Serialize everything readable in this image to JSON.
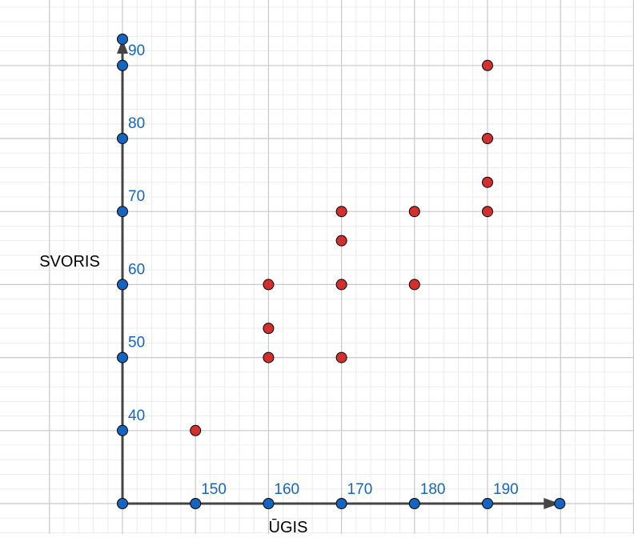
{
  "chart_data": {
    "type": "scatter",
    "title": "",
    "xlabel": "ŪGIS",
    "ylabel": "SVORIS",
    "grid": true,
    "x_ticks": [
      {
        "value": 150,
        "label": "150"
      },
      {
        "value": 160,
        "label": "160"
      },
      {
        "value": 170,
        "label": "170"
      },
      {
        "value": 180,
        "label": "180"
      },
      {
        "value": 190,
        "label": "190"
      }
    ],
    "y_ticks": [
      {
        "value": 40,
        "label": "40"
      },
      {
        "value": 50,
        "label": "50"
      },
      {
        "value": 60,
        "label": "60"
      },
      {
        "value": 70,
        "label": "70"
      },
      {
        "value": 80,
        "label": "80"
      },
      {
        "value": 90,
        "label": "90"
      }
    ],
    "points": [
      {
        "x": 150,
        "y": 40
      },
      {
        "x": 160,
        "y": 50
      },
      {
        "x": 160,
        "y": 54
      },
      {
        "x": 160,
        "y": 60
      },
      {
        "x": 170,
        "y": 50
      },
      {
        "x": 170,
        "y": 60
      },
      {
        "x": 170,
        "y": 66
      },
      {
        "x": 170,
        "y": 70
      },
      {
        "x": 180,
        "y": 60
      },
      {
        "x": 180,
        "y": 70
      },
      {
        "x": 190,
        "y": 70
      },
      {
        "x": 190,
        "y": 74
      },
      {
        "x": 190,
        "y": 80
      },
      {
        "x": 190,
        "y": 90
      }
    ],
    "colors": {
      "data_point": "#d32f2f",
      "axis_point": "#1565c0",
      "tick_label": "#1565c0",
      "axis": "#444444",
      "major_grid": "#c8c8c8",
      "minor_grid": "#ececec",
      "axis_label": "#000000"
    }
  }
}
